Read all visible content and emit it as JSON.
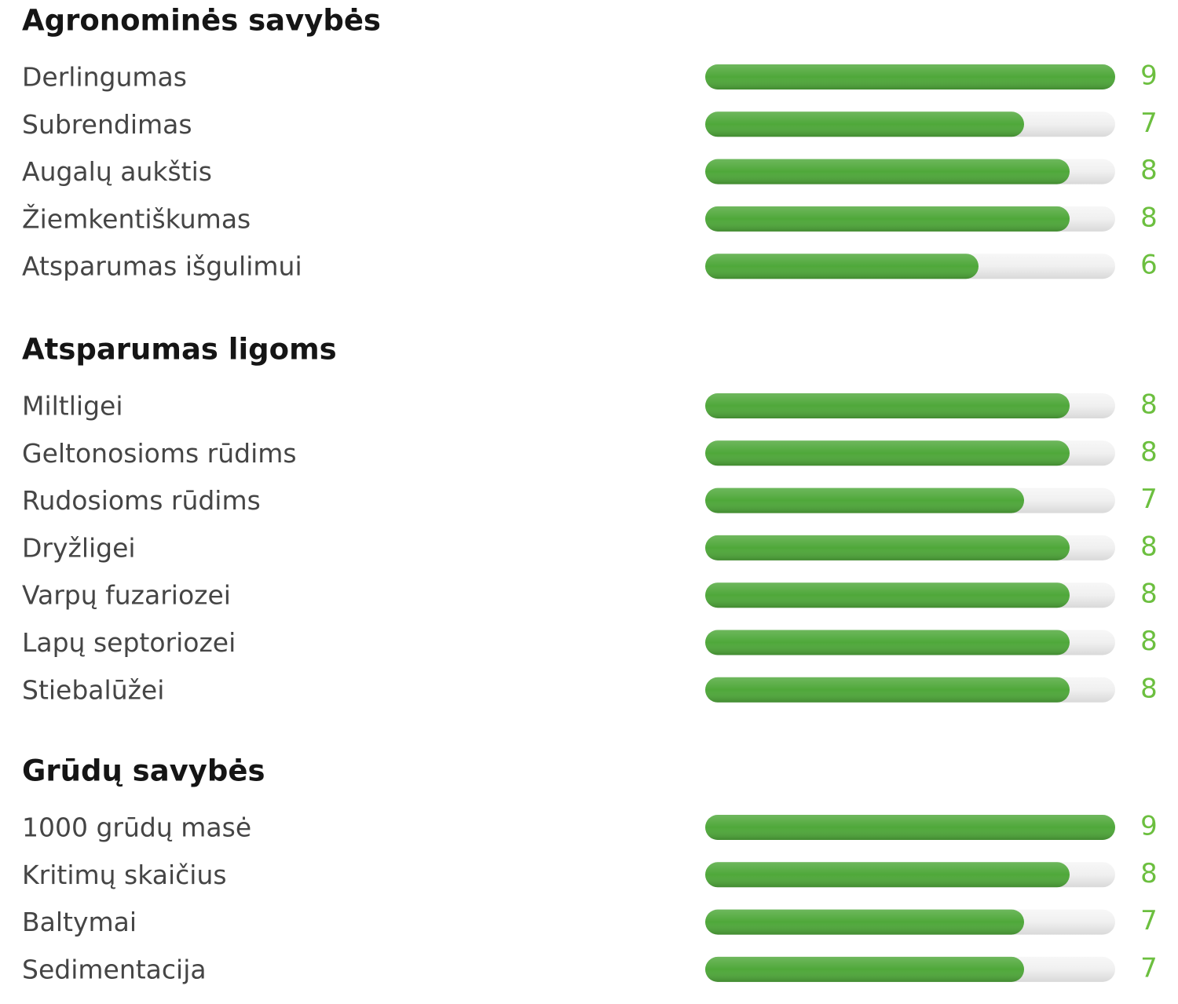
{
  "chart_data": [
    {
      "type": "bar",
      "orientation": "horizontal",
      "title": "Agronominės savybės",
      "categories": [
        "Derlingumas",
        "Subrendimas",
        "Augalų aukštis",
        "Žiemkentiškumas",
        "Atsparumas išgulimui"
      ],
      "values": [
        9,
        7,
        8,
        8,
        6
      ],
      "xlim": [
        0,
        9
      ],
      "color": "#4fa83a",
      "label_color": "#6cbf3f"
    },
    {
      "type": "bar",
      "orientation": "horizontal",
      "title": "Atsparumas ligoms",
      "categories": [
        "Miltligei",
        "Geltonosioms rūdims",
        "Rudosioms rūdims",
        "Dryžligei",
        "Varpų fuzariozei",
        "Lapų septoriozei",
        "Stiebalūžei"
      ],
      "values": [
        8,
        8,
        7,
        8,
        8,
        8,
        8
      ],
      "xlim": [
        0,
        9
      ],
      "color": "#4fa83a",
      "label_color": "#6cbf3f"
    },
    {
      "type": "bar",
      "orientation": "horizontal",
      "title": "Grūdų savybės",
      "categories": [
        "1000 grūdų masė",
        "Kritimų skaičius",
        "Baltymai",
        "Sedimentacija"
      ],
      "values": [
        9,
        8,
        7,
        7
      ],
      "xlim": [
        0,
        9
      ],
      "color": "#4fa83a",
      "label_color": "#6cbf3f"
    }
  ]
}
